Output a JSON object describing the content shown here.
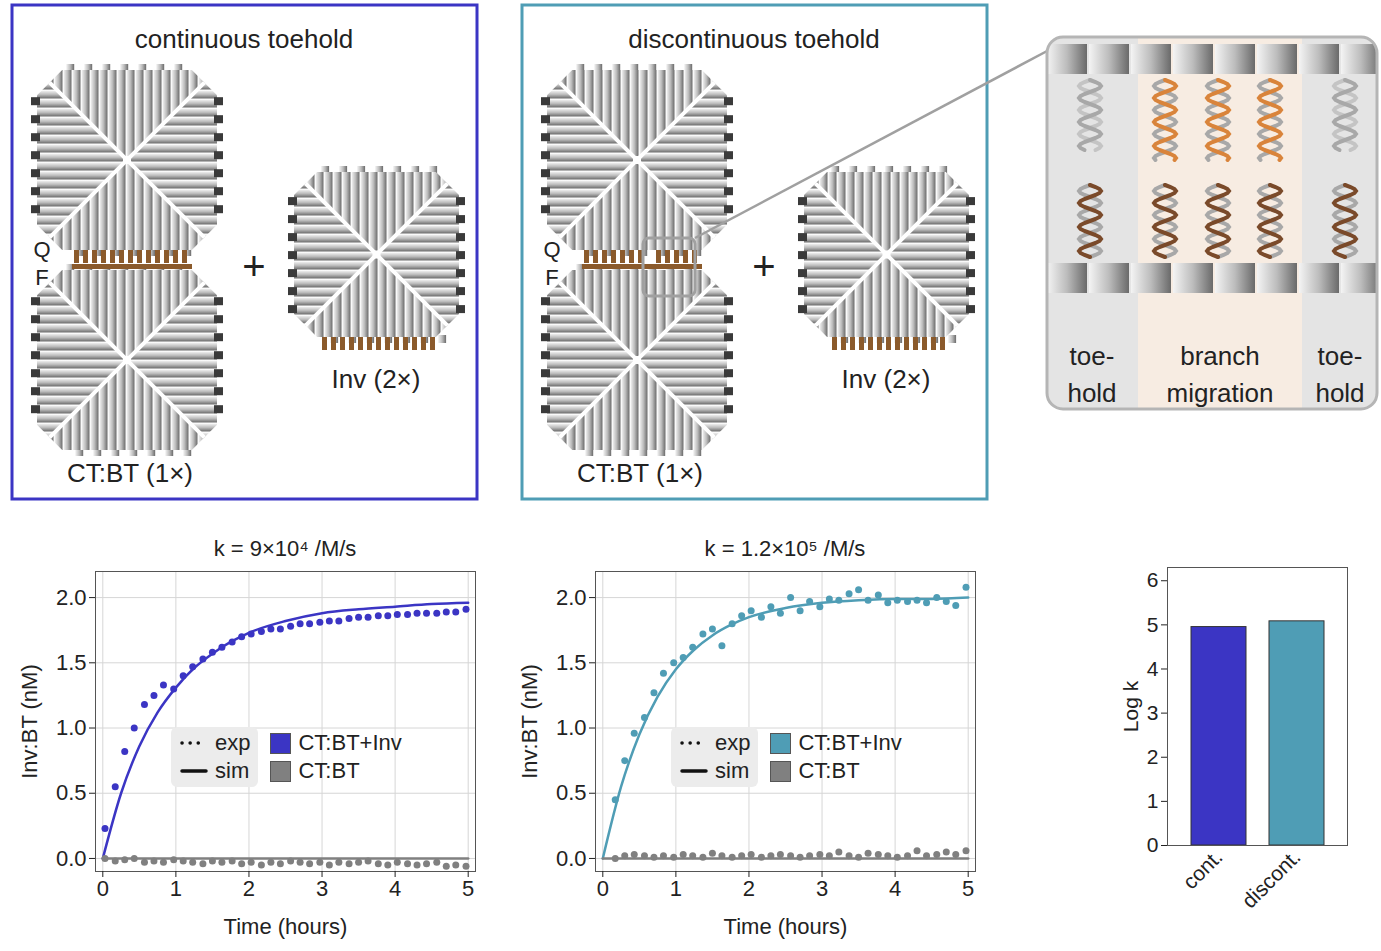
{
  "diagram": {
    "panels": [
      {
        "title": "continuous toehold",
        "color": "#3b35c4",
        "toehold": "continuous",
        "labels": {
          "quencher": "Q",
          "fluorophore": "F",
          "plus": "+",
          "complex": "CT:BT (1×)",
          "invader": "Inv (2×)"
        }
      },
      {
        "title": "discontinuous toehold",
        "color": "#4f9db5",
        "toehold": "discontinuous",
        "labels": {
          "quencher": "Q",
          "fluorophore": "F",
          "plus": "+",
          "complex": "CT:BT (1×)",
          "invader": "Inv (2×)"
        }
      }
    ],
    "inset": {
      "sections": [
        {
          "lines": [
            "toe-",
            "hold"
          ]
        },
        {
          "lines": [
            "branch",
            "migration"
          ]
        },
        {
          "lines": [
            "toe-",
            "hold"
          ]
        }
      ]
    }
  },
  "chart_data": [
    {
      "type": "scatter",
      "title": "k = 9×10⁴ /M/s",
      "x_label": "Time (hours)",
      "y_label": "Inv:BT (nM)",
      "xlim": [
        -0.1,
        5.1
      ],
      "xticks": [
        0,
        1,
        2,
        3,
        4,
        5
      ],
      "ylim": [
        -0.1,
        2.2
      ],
      "yticks": [
        {
          "value": 0,
          "label": "0.0"
        },
        {
          "value": 0.5,
          "label": "0.5"
        },
        {
          "value": 1,
          "label": "1.0"
        },
        {
          "value": 1.5,
          "label": "1.5"
        },
        {
          "value": 2,
          "label": "2.0"
        }
      ],
      "grid": true,
      "legend": "bottom",
      "legend_styles": [
        {
          "name": "exp",
          "line_style": "dotted"
        },
        {
          "name": "sim",
          "line_style": "solid"
        }
      ],
      "series": [
        {
          "name": "CT:BT+Inv",
          "color": "#3b35c4",
          "type": "scatter",
          "marker": "dot",
          "x": [
            0.03,
            0.17,
            0.3,
            0.43,
            0.57,
            0.7,
            0.83,
            0.97,
            1.1,
            1.23,
            1.37,
            1.5,
            1.63,
            1.77,
            1.9,
            2.03,
            2.17,
            2.3,
            2.43,
            2.57,
            2.7,
            2.83,
            2.97,
            3.1,
            3.23,
            3.37,
            3.5,
            3.63,
            3.77,
            3.9,
            4.03,
            4.17,
            4.3,
            4.43,
            4.57,
            4.7,
            4.83,
            4.97
          ],
          "values": [
            0.23,
            0.55,
            0.82,
            1.0,
            1.18,
            1.25,
            1.33,
            1.3,
            1.4,
            1.47,
            1.53,
            1.58,
            1.62,
            1.66,
            1.7,
            1.72,
            1.74,
            1.76,
            1.76,
            1.78,
            1.8,
            1.8,
            1.81,
            1.82,
            1.82,
            1.84,
            1.85,
            1.85,
            1.86,
            1.86,
            1.87,
            1.87,
            1.88,
            1.88,
            1.88,
            1.89,
            1.89,
            1.91
          ]
        },
        {
          "name": "CT:BT+Inv",
          "color": "#3b35c4",
          "type": "line",
          "line_style": "solid",
          "x": [
            0,
            0.25,
            0.5,
            0.75,
            1,
            1.25,
            1.5,
            1.75,
            2,
            2.5,
            3,
            3.5,
            4,
            4.5,
            5
          ],
          "values": [
            0,
            0.5,
            0.86,
            1.12,
            1.31,
            1.46,
            1.57,
            1.66,
            1.73,
            1.82,
            1.88,
            1.91,
            1.93,
            1.95,
            1.96
          ]
        },
        {
          "name": "CT:BT",
          "color": "#808080",
          "type": "scatter",
          "marker": "dot",
          "x": [
            0.03,
            0.17,
            0.3,
            0.43,
            0.57,
            0.7,
            0.83,
            0.97,
            1.1,
            1.23,
            1.37,
            1.5,
            1.63,
            1.77,
            1.9,
            2.03,
            2.17,
            2.3,
            2.43,
            2.57,
            2.7,
            2.83,
            2.97,
            3.1,
            3.23,
            3.37,
            3.5,
            3.63,
            3.77,
            3.9,
            4.03,
            4.17,
            4.3,
            4.43,
            4.57,
            4.7,
            4.83,
            4.97
          ],
          "values": [
            0,
            -0.02,
            -0.01,
            0,
            -0.03,
            -0.02,
            -0.03,
            -0.01,
            -0.02,
            -0.03,
            -0.04,
            -0.02,
            -0.03,
            -0.02,
            -0.04,
            -0.03,
            -0.05,
            -0.03,
            -0.04,
            -0.02,
            -0.03,
            -0.04,
            -0.03,
            -0.05,
            -0.03,
            -0.04,
            -0.03,
            -0.02,
            -0.04,
            -0.05,
            -0.03,
            -0.04,
            -0.05,
            -0.04,
            -0.03,
            -0.06,
            -0.05,
            -0.06
          ]
        },
        {
          "name": "CT:BT",
          "color": "#808080",
          "type": "line",
          "line_style": "solid",
          "x": [
            0,
            5
          ],
          "values": [
            0,
            0
          ]
        }
      ]
    },
    {
      "type": "scatter",
      "title": "k = 1.2×10⁵ /M/s",
      "x_label": "Time (hours)",
      "y_label": "Inv:BT (nM)",
      "xlim": [
        -0.1,
        5.1
      ],
      "xticks": [
        0,
        1,
        2,
        3,
        4,
        5
      ],
      "ylim": [
        -0.1,
        2.2
      ],
      "yticks": [
        {
          "value": 0,
          "label": "0.0"
        },
        {
          "value": 0.5,
          "label": "0.5"
        },
        {
          "value": 1,
          "label": "1.0"
        },
        {
          "value": 1.5,
          "label": "1.5"
        },
        {
          "value": 2,
          "label": "2.0"
        }
      ],
      "grid": true,
      "legend": "bottom",
      "legend_styles": [
        {
          "name": "exp",
          "line_style": "dotted"
        },
        {
          "name": "sim",
          "line_style": "solid"
        }
      ],
      "series": [
        {
          "name": "CT:BT+Inv",
          "color": "#4f9db5",
          "type": "scatter",
          "marker": "dot",
          "x": [
            0.17,
            0.3,
            0.43,
            0.57,
            0.7,
            0.83,
            0.97,
            1.1,
            1.23,
            1.37,
            1.5,
            1.63,
            1.77,
            1.9,
            2.03,
            2.17,
            2.3,
            2.43,
            2.57,
            2.7,
            2.83,
            2.97,
            3.1,
            3.23,
            3.37,
            3.5,
            3.63,
            3.77,
            3.9,
            4.03,
            4.17,
            4.3,
            4.43,
            4.57,
            4.7,
            4.83,
            4.97
          ],
          "values": [
            0.45,
            0.75,
            0.96,
            1.08,
            1.27,
            1.42,
            1.5,
            1.54,
            1.62,
            1.72,
            1.76,
            1.63,
            1.8,
            1.86,
            1.9,
            1.85,
            1.93,
            1.88,
            2.0,
            1.9,
            1.97,
            1.93,
            1.99,
            1.98,
            2.03,
            2.06,
            1.98,
            2.02,
            1.96,
            1.98,
            1.97,
            1.98,
            1.96,
            2.0,
            1.97,
            1.94,
            2.08
          ]
        },
        {
          "name": "CT:BT+Inv",
          "color": "#4f9db5",
          "type": "line",
          "line_style": "solid",
          "x": [
            0,
            0.25,
            0.5,
            0.75,
            1,
            1.25,
            1.5,
            1.75,
            2,
            2.5,
            3,
            3.5,
            4,
            4.5,
            5
          ],
          "values": [
            0,
            0.55,
            0.95,
            1.24,
            1.45,
            1.6,
            1.71,
            1.79,
            1.85,
            1.92,
            1.96,
            1.98,
            1.99,
            1.99,
            2.0
          ]
        },
        {
          "name": "CT:BT",
          "color": "#808080",
          "type": "scatter",
          "marker": "dot",
          "x": [
            0.17,
            0.3,
            0.43,
            0.57,
            0.7,
            0.83,
            0.97,
            1.1,
            1.23,
            1.37,
            1.5,
            1.63,
            1.77,
            1.9,
            2.03,
            2.17,
            2.3,
            2.43,
            2.57,
            2.7,
            2.83,
            2.97,
            3.1,
            3.23,
            3.37,
            3.5,
            3.63,
            3.77,
            3.9,
            4.03,
            4.17,
            4.3,
            4.43,
            4.57,
            4.7,
            4.83,
            4.97
          ],
          "values": [
            0,
            0.02,
            0.03,
            0.02,
            0.01,
            0.02,
            0.01,
            0.03,
            0.02,
            0.01,
            0.04,
            0.02,
            0.01,
            0.02,
            0.03,
            0.01,
            0.02,
            0.03,
            0.02,
            0.01,
            0.02,
            0.03,
            0.02,
            0.05,
            0.02,
            0.01,
            0.04,
            0.03,
            0.02,
            0.01,
            0.02,
            0.06,
            0.02,
            0.03,
            0.05,
            0.03,
            0.06
          ]
        },
        {
          "name": "CT:BT",
          "color": "#808080",
          "type": "line",
          "line_style": "solid",
          "x": [
            0,
            5
          ],
          "values": [
            0,
            0
          ]
        }
      ]
    },
    {
      "type": "bar",
      "y_label": "Log k",
      "categories": [
        "cont.",
        "discont."
      ],
      "values": [
        4.95,
        5.08
      ],
      "colors": [
        "#3b35c4",
        "#4f9db5"
      ],
      "ylim": [
        0,
        6.3
      ],
      "yticks": [
        0,
        1,
        2,
        3,
        4,
        5,
        6
      ],
      "grid": false
    }
  ]
}
